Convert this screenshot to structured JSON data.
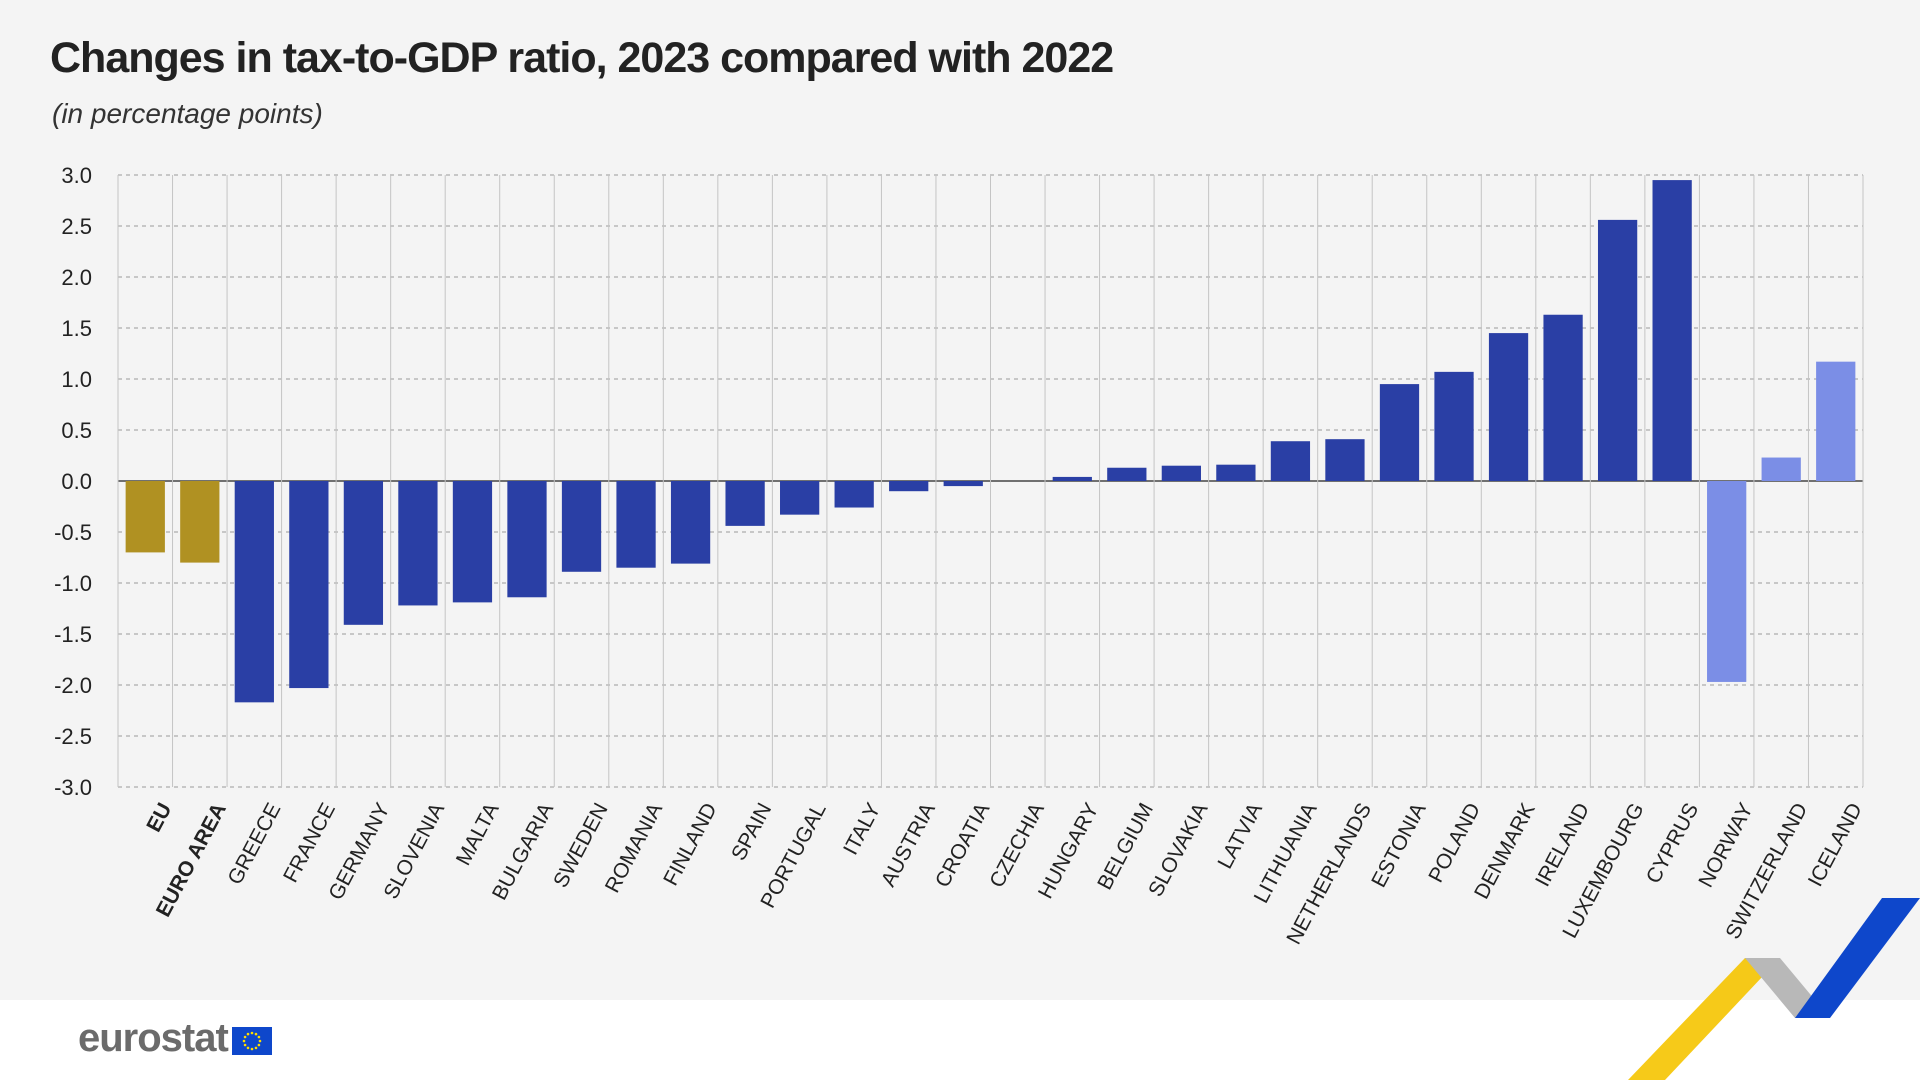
{
  "chart_data": {
    "type": "bar",
    "title": "Changes in tax-to-GDP ratio, 2023 compared with 2022",
    "subtitle": "(in percentage points)",
    "categories": [
      "EU",
      "EURO AREA",
      "GREECE",
      "FRANCE",
      "GERMANY",
      "SLOVENIA",
      "MALTA",
      "BULGARIA",
      "SWEDEN",
      "ROMANIA",
      "FINLAND",
      "SPAIN",
      "PORTUGAL",
      "ITALY",
      "AUSTRIA",
      "CROATIA",
      "CZECHIA",
      "HUNGARY",
      "BELGIUM",
      "SLOVAKIA",
      "LATVIA",
      "LITHUANIA",
      "NETHERLANDS",
      "ESTONIA",
      "POLAND",
      "DENMARK",
      "IRELAND",
      "LUXEMBOURG",
      "CYPRUS",
      "NORWAY",
      "SWITZERLAND",
      "ICELAND"
    ],
    "values": [
      -0.7,
      -0.8,
      -2.17,
      -2.03,
      -1.41,
      -1.22,
      -1.19,
      -1.14,
      -0.89,
      -0.85,
      -0.81,
      -0.44,
      -0.33,
      -0.26,
      -0.1,
      -0.05,
      0.0,
      0.04,
      0.13,
      0.15,
      0.16,
      0.39,
      0.41,
      0.95,
      1.07,
      1.45,
      1.63,
      2.56,
      2.95,
      -1.97,
      0.23,
      1.17
    ],
    "groups": [
      "aggregate",
      "aggregate",
      "member",
      "member",
      "member",
      "member",
      "member",
      "member",
      "member",
      "member",
      "member",
      "member",
      "member",
      "member",
      "member",
      "member",
      "member",
      "member",
      "member",
      "member",
      "member",
      "member",
      "member",
      "member",
      "member",
      "member",
      "member",
      "member",
      "member",
      "efta",
      "efta",
      "efta"
    ],
    "group_colors": {
      "aggregate": "#b09122",
      "member": "#2a3fa5",
      "efta": "#7b8ee6"
    },
    "bold_categories": [
      "EU",
      "EURO AREA"
    ],
    "ylim": [
      -3.0,
      3.0
    ],
    "yticks": [
      "3.0",
      "2.5",
      "2.0",
      "1.5",
      "1.0",
      "0.5",
      "0.0",
      "-0.5",
      "-1.0",
      "-1.5",
      "-2.0",
      "-2.5",
      "-3.0"
    ],
    "grid": true,
    "xlabel": "",
    "ylabel": ""
  },
  "footer": {
    "logo_text": "eurostat",
    "flag_color": "#0e47cb",
    "accent_colors": {
      "yellow": "#f5c400",
      "grey": "#b8b8b8",
      "blue": "#0e47cb"
    }
  }
}
